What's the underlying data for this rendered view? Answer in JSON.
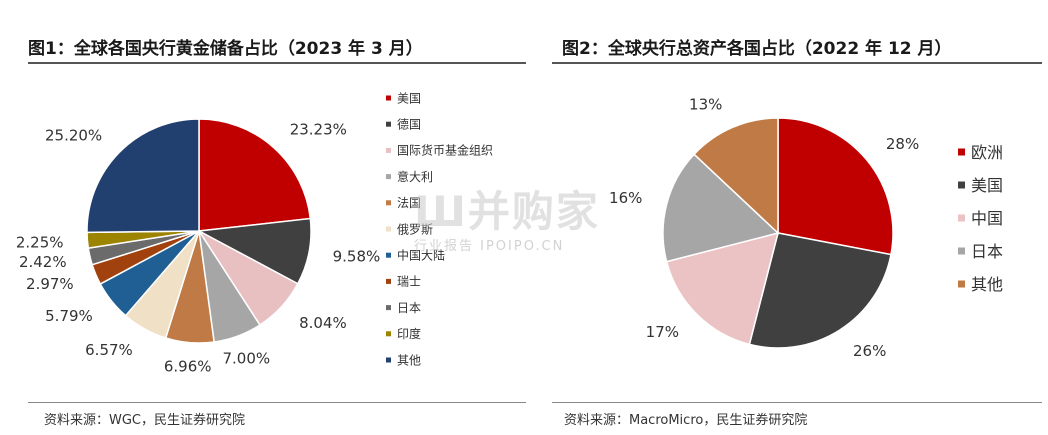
{
  "charts": [
    {
      "title": "图1：全球各国央行黄金储备占比（2023 年 3 月）",
      "source": "资料来源：WGC，民生证券研究院"
    },
    {
      "title": "图2：全球央行总资产各国占比（2022 年 12 月）",
      "source": "资料来源：MacroMicro，民生证券研究院"
    }
  ],
  "watermark": {
    "main": "Ш并购家",
    "sub": "行业报告 IPOIPO.CN"
  },
  "chart_data": [
    {
      "type": "pie",
      "title": "图1：全球各国央行黄金储备占比（2023 年 3 月）",
      "legend_position": "right",
      "slices": [
        {
          "name": "美国",
          "value": 23.23,
          "label": "23.23%",
          "color": "#c00000"
        },
        {
          "name": "德国",
          "value": 9.58,
          "label": "9.58%",
          "color": "#404040"
        },
        {
          "name": "国际货币基金组织",
          "value": 8.04,
          "label": "8.04%",
          "color": "#e8c0c2"
        },
        {
          "name": "意大利",
          "value": 7.0,
          "label": "7.00%",
          "color": "#a6a6a6"
        },
        {
          "name": "法国",
          "value": 6.96,
          "label": "6.96%",
          "color": "#c07a45"
        },
        {
          "name": "俄罗斯",
          "value": 6.57,
          "label": "6.57%",
          "color": "#efe0c6"
        },
        {
          "name": "中国大陆",
          "value": 5.79,
          "label": "5.79%",
          "color": "#1f5f94"
        },
        {
          "name": "瑞士",
          "value": 2.97,
          "label": "2.97%",
          "color": "#a0410e"
        },
        {
          "name": "日本",
          "value": 2.42,
          "label": "2.42%",
          "color": "#6b6b6b"
        },
        {
          "name": "印度",
          "value": 2.25,
          "label": "2.25%",
          "color": "#9c8300"
        },
        {
          "name": "其他",
          "value": 25.2,
          "label": "25.20%",
          "color": "#22406f"
        }
      ]
    },
    {
      "type": "pie",
      "title": "图2：全球央行总资产各国占比（2022 年 12 月）",
      "legend_position": "right",
      "slices": [
        {
          "name": "欧洲",
          "value": 28,
          "label": "28%",
          "color": "#c00000"
        },
        {
          "name": "美国",
          "value": 26,
          "label": "26%",
          "color": "#404040"
        },
        {
          "name": "中国",
          "value": 17,
          "label": "17%",
          "color": "#ecc3c5"
        },
        {
          "name": "日本",
          "value": 16,
          "label": "16%",
          "color": "#a6a6a6"
        },
        {
          "name": "其他",
          "value": 13,
          "label": "13%",
          "color": "#c07a45"
        }
      ]
    }
  ]
}
